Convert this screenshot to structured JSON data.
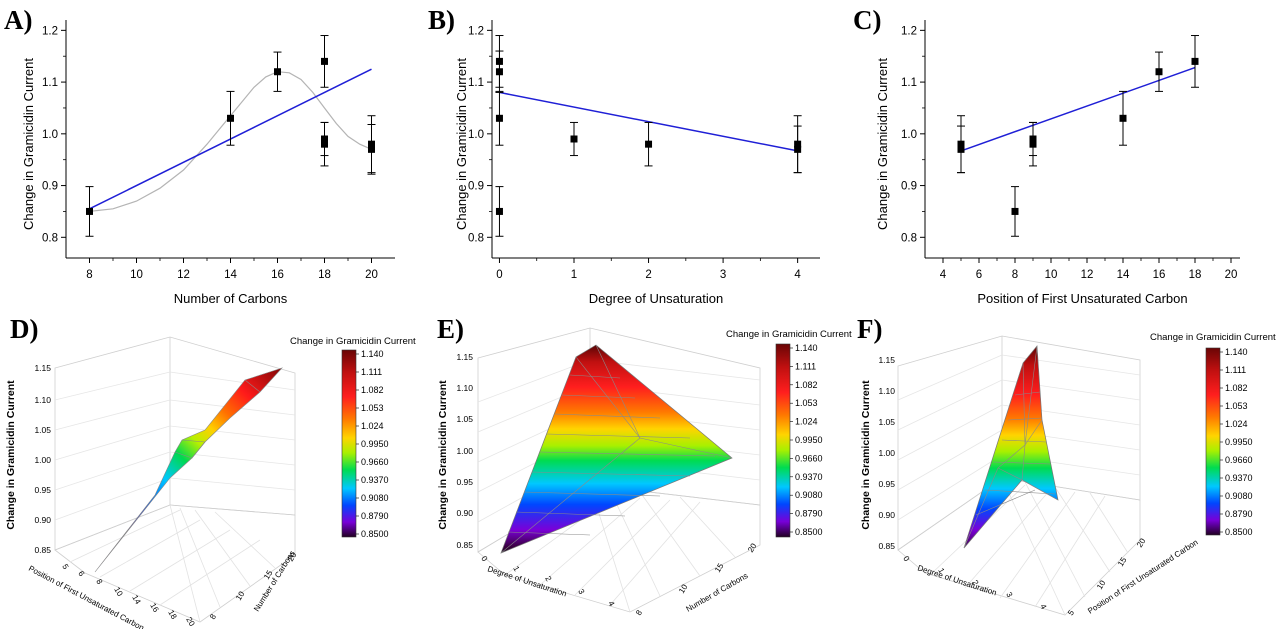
{
  "chart_data": [
    {
      "panel": "A)",
      "type": "scatter",
      "xlabel": "Number of Carbons",
      "ylabel": "Change in Gramicidin Current",
      "xlim": [
        7,
        21
      ],
      "ylim": [
        0.76,
        1.22
      ],
      "xticks": [
        8,
        10,
        12,
        14,
        16,
        18,
        20
      ],
      "yticks": [
        0.8,
        0.9,
        1.0,
        1.1,
        1.2
      ],
      "points": [
        {
          "x": 8,
          "y": 0.85,
          "err": 0.048
        },
        {
          "x": 14,
          "y": 1.03,
          "err": 0.052
        },
        {
          "x": 16,
          "y": 1.12,
          "err": 0.038
        },
        {
          "x": 18,
          "y": 1.14,
          "err": 0.05
        },
        {
          "x": 18,
          "y": 0.98,
          "err": 0.042
        },
        {
          "x": 18,
          "y": 0.99,
          "err": 0.032
        },
        {
          "x": 20,
          "y": 0.97,
          "err": 0.048
        },
        {
          "x": 20,
          "y": 0.98,
          "err": 0.055
        }
      ],
      "fit_line": {
        "x": [
          8,
          20
        ],
        "y": [
          0.855,
          1.125
        ],
        "color": "#1f1fd6"
      },
      "fit_curve": {
        "x": [
          8,
          9,
          10,
          11,
          12,
          13,
          14,
          15,
          15.5,
          16,
          16.5,
          17,
          17.5,
          18,
          18.5,
          19,
          19.5,
          20
        ],
        "y": [
          0.85,
          0.855,
          0.87,
          0.895,
          0.93,
          0.98,
          1.035,
          1.09,
          1.11,
          1.12,
          1.118,
          1.105,
          1.08,
          1.05,
          1.02,
          0.995,
          0.98,
          0.97
        ],
        "color": "#b4b4b4"
      }
    },
    {
      "panel": "B)",
      "type": "scatter",
      "xlabel": "Degree of Unsaturation",
      "ylabel": "Change in Gramicidin Current",
      "xlim": [
        -0.1,
        4.3
      ],
      "ylim": [
        0.76,
        1.22
      ],
      "xticks": [
        0,
        1,
        2,
        3,
        4
      ],
      "yticks": [
        0.8,
        0.9,
        1.0,
        1.1,
        1.2
      ],
      "points": [
        {
          "x": 0,
          "y": 0.85,
          "err": 0.048
        },
        {
          "x": 0,
          "y": 1.03,
          "err": 0.052
        },
        {
          "x": 0,
          "y": 1.12,
          "err": 0.04
        },
        {
          "x": 0,
          "y": 1.14,
          "err": 0.05
        },
        {
          "x": 1,
          "y": 0.99,
          "err": 0.032
        },
        {
          "x": 2,
          "y": 0.98,
          "err": 0.042
        },
        {
          "x": 4,
          "y": 0.97,
          "err": 0.045
        },
        {
          "x": 4,
          "y": 0.98,
          "err": 0.055
        }
      ],
      "fit_line": {
        "x": [
          0,
          4
        ],
        "y": [
          1.08,
          0.967
        ],
        "color": "#1f1fd6"
      }
    },
    {
      "panel": "C)",
      "type": "scatter",
      "xlabel": "Position of First Unsaturated Carbon",
      "ylabel": "Change in Gramicidin Current",
      "xlim": [
        3,
        20.5
      ],
      "ylim": [
        0.76,
        1.22
      ],
      "xticks": [
        4,
        6,
        8,
        10,
        12,
        14,
        16,
        18,
        20
      ],
      "yticks": [
        0.8,
        0.9,
        1.0,
        1.1,
        1.2
      ],
      "points": [
        {
          "x": 5,
          "y": 0.97,
          "err": 0.045
        },
        {
          "x": 5,
          "y": 0.98,
          "err": 0.055
        },
        {
          "x": 8,
          "y": 0.85,
          "err": 0.048
        },
        {
          "x": 9,
          "y": 0.98,
          "err": 0.042
        },
        {
          "x": 9,
          "y": 0.99,
          "err": 0.032
        },
        {
          "x": 14,
          "y": 1.03,
          "err": 0.052
        },
        {
          "x": 16,
          "y": 1.12,
          "err": 0.038
        },
        {
          "x": 18,
          "y": 1.14,
          "err": 0.05
        }
      ],
      "fit_line": {
        "x": [
          5,
          18
        ],
        "y": [
          0.967,
          1.128
        ],
        "color": "#1f1fd6"
      }
    },
    {
      "panel": "D)",
      "type": "surface3d",
      "xlabel": "Position of First Unsaturated Carbon",
      "ylabel": "Number of Carbons",
      "zlabel": "Change in Gramicidin Current",
      "zticks": [
        "0.85",
        "0.90",
        "0.95",
        "1.00",
        "1.05",
        "1.10",
        "1.15"
      ],
      "colorbar_title": "Change in Gramicidin Current",
      "colorbar_ticks": [
        "1.140",
        "1.111",
        "1.082",
        "1.053",
        "1.024",
        "0.9950",
        "0.9660",
        "0.9370",
        "0.9080",
        "0.8790",
        "0.8500"
      ],
      "front_ticks": [
        "5",
        "6",
        "8",
        "10",
        "14",
        "16",
        "18",
        "20"
      ],
      "side_ticks": [
        "8",
        "10",
        "15",
        "20"
      ]
    },
    {
      "panel": "E)",
      "type": "surface3d",
      "xlabel": "Degree of Unsaturation",
      "ylabel": "Number of Carbons",
      "zlabel": "Change in Gramicidin Current",
      "zticks": [
        "0.85",
        "0.90",
        "0.95",
        "1.00",
        "1.05",
        "1.10",
        "1.15"
      ],
      "colorbar_title": "Change in Gramicidin Current",
      "colorbar_ticks": [
        "1.140",
        "1.111",
        "1.082",
        "1.053",
        "1.024",
        "0.9950",
        "0.9660",
        "0.9370",
        "0.9080",
        "0.8790",
        "0.8500"
      ],
      "front_ticks": [
        "0",
        "1",
        "2",
        "3",
        "4"
      ],
      "side_ticks": [
        "8",
        "10",
        "15",
        "20"
      ]
    },
    {
      "panel": "F)",
      "type": "surface3d",
      "xlabel": "Degree of Unsaturation",
      "ylabel": "Position of First Unsaturated Carbon",
      "zlabel": "Change in Gramicidin Current",
      "zticks": [
        "0.85",
        "0.90",
        "0.95",
        "1.00",
        "1.05",
        "1.10",
        "1.15"
      ],
      "colorbar_title": "Change in Gramicidin Current",
      "colorbar_ticks": [
        "1.140",
        "1.111",
        "1.082",
        "1.053",
        "1.024",
        "0.9950",
        "0.9660",
        "0.9370",
        "0.9080",
        "0.8790",
        "0.8500"
      ],
      "front_ticks": [
        "0",
        "1",
        "2",
        "3",
        "4"
      ],
      "side_ticks": [
        "5",
        "10",
        "15",
        "20"
      ]
    }
  ],
  "colors": {
    "marker": "#000000",
    "fit_line": "#1f1fd6",
    "fit_curve": "#b4b4b4",
    "colormap": [
      "#5a0a0a",
      "#b41010",
      "#ff1a1a",
      "#ff6a00",
      "#ffc800",
      "#b4f000",
      "#00d84a",
      "#00c8ff",
      "#0050ff",
      "#7a00d8",
      "#2a002a"
    ]
  }
}
